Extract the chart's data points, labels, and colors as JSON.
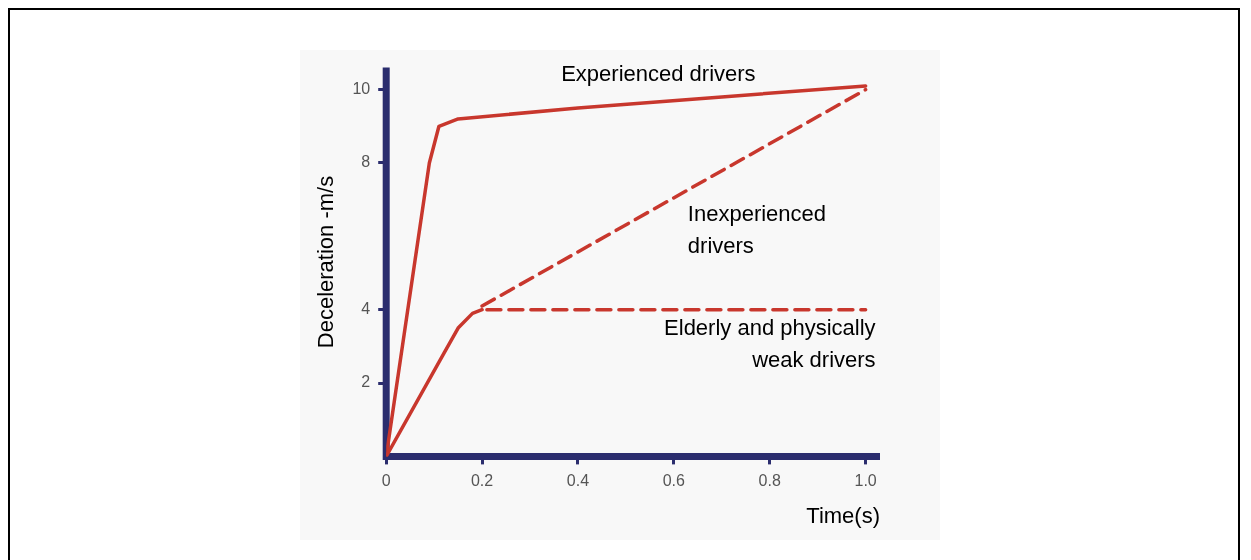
{
  "chart_data": {
    "type": "line",
    "xlabel": "Time(s)",
    "ylabel": "Deceleration -m/s",
    "xlim": [
      0,
      1.03
    ],
    "xticks": [
      0,
      0.2,
      0.4,
      0.6,
      0.8,
      {
        "value": 1,
        "label": "1.0"
      }
    ],
    "ylim": [
      0,
      10.6
    ],
    "yticks": [
      2,
      4,
      8,
      10
    ],
    "grid": false,
    "legend": false,
    "marker": "none",
    "series": [
      {
        "name": "Experienced drivers",
        "color": "#c8372d",
        "line_style": "solid",
        "x": [
          0,
          0.09,
          0.11,
          0.15,
          0.4,
          0.7,
          1.0
        ],
        "values": [
          0,
          8.0,
          9.0,
          9.2,
          9.5,
          9.8,
          10.1
        ]
      },
      {
        "color": "#c8372d",
        "line_style": "solid",
        "x": [
          0,
          0.12,
          0.15,
          0.18,
          0.2
        ],
        "values": [
          0,
          2.8,
          3.5,
          3.9,
          4.0
        ]
      },
      {
        "name": "Inexperienced drivers",
        "color": "#c8372d",
        "line_style": "dashed",
        "x": [
          0.2,
          1.0
        ],
        "values": [
          4.1,
          10.0
        ]
      },
      {
        "name": "Elderly and physically weak drivers",
        "color": "#c8372d",
        "line_style": "dashed",
        "x": [
          0.21,
          1.0
        ],
        "values": [
          4.0,
          4.0
        ]
      }
    ]
  }
}
